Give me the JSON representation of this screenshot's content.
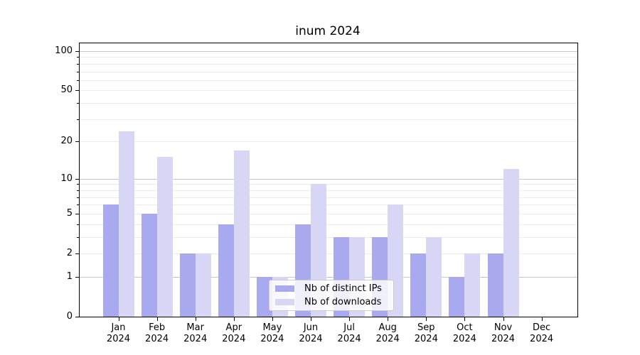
{
  "title": "inum 2024",
  "legend": {
    "items": [
      {
        "label": "Nb of distinct IPs",
        "color": "#a9a9ef"
      },
      {
        "label": "Nb of downloads",
        "color": "#d7d7f5"
      }
    ]
  },
  "colors": {
    "bar_ips": "#a9a9ef",
    "bar_downloads": "#d7d7f5",
    "grid_major": "#c6c6c6",
    "grid_minor": "#ebebeb",
    "axis": "#000000",
    "background": "#ffffff"
  },
  "chart_data": {
    "type": "bar",
    "title": "inum 2024",
    "x_year": "2024",
    "categories": [
      "Jan",
      "Feb",
      "Mar",
      "Apr",
      "May",
      "Jun",
      "Jul",
      "Aug",
      "Sep",
      "Oct",
      "Nov",
      "Dec"
    ],
    "series": [
      {
        "name": "Nb of distinct IPs",
        "color": "#a9a9ef",
        "values": [
          6,
          5,
          2,
          4,
          1,
          4,
          3,
          3,
          2,
          1,
          2,
          0
        ]
      },
      {
        "name": "Nb of downloads",
        "color": "#d7d7f5",
        "values": [
          24,
          15,
          2,
          17,
          1,
          9,
          3,
          6,
          3,
          2,
          12,
          0
        ]
      }
    ],
    "yscale": "log1p",
    "ylabel": "",
    "xlabel": "",
    "y_ticks_labeled": [
      0,
      1,
      2,
      5,
      10,
      20,
      50,
      100
    ],
    "y_gridlines_major": [
      1,
      10,
      100
    ],
    "ylim": [
      0,
      113
    ],
    "grid": "both",
    "legend_position": "lower-center-left"
  }
}
